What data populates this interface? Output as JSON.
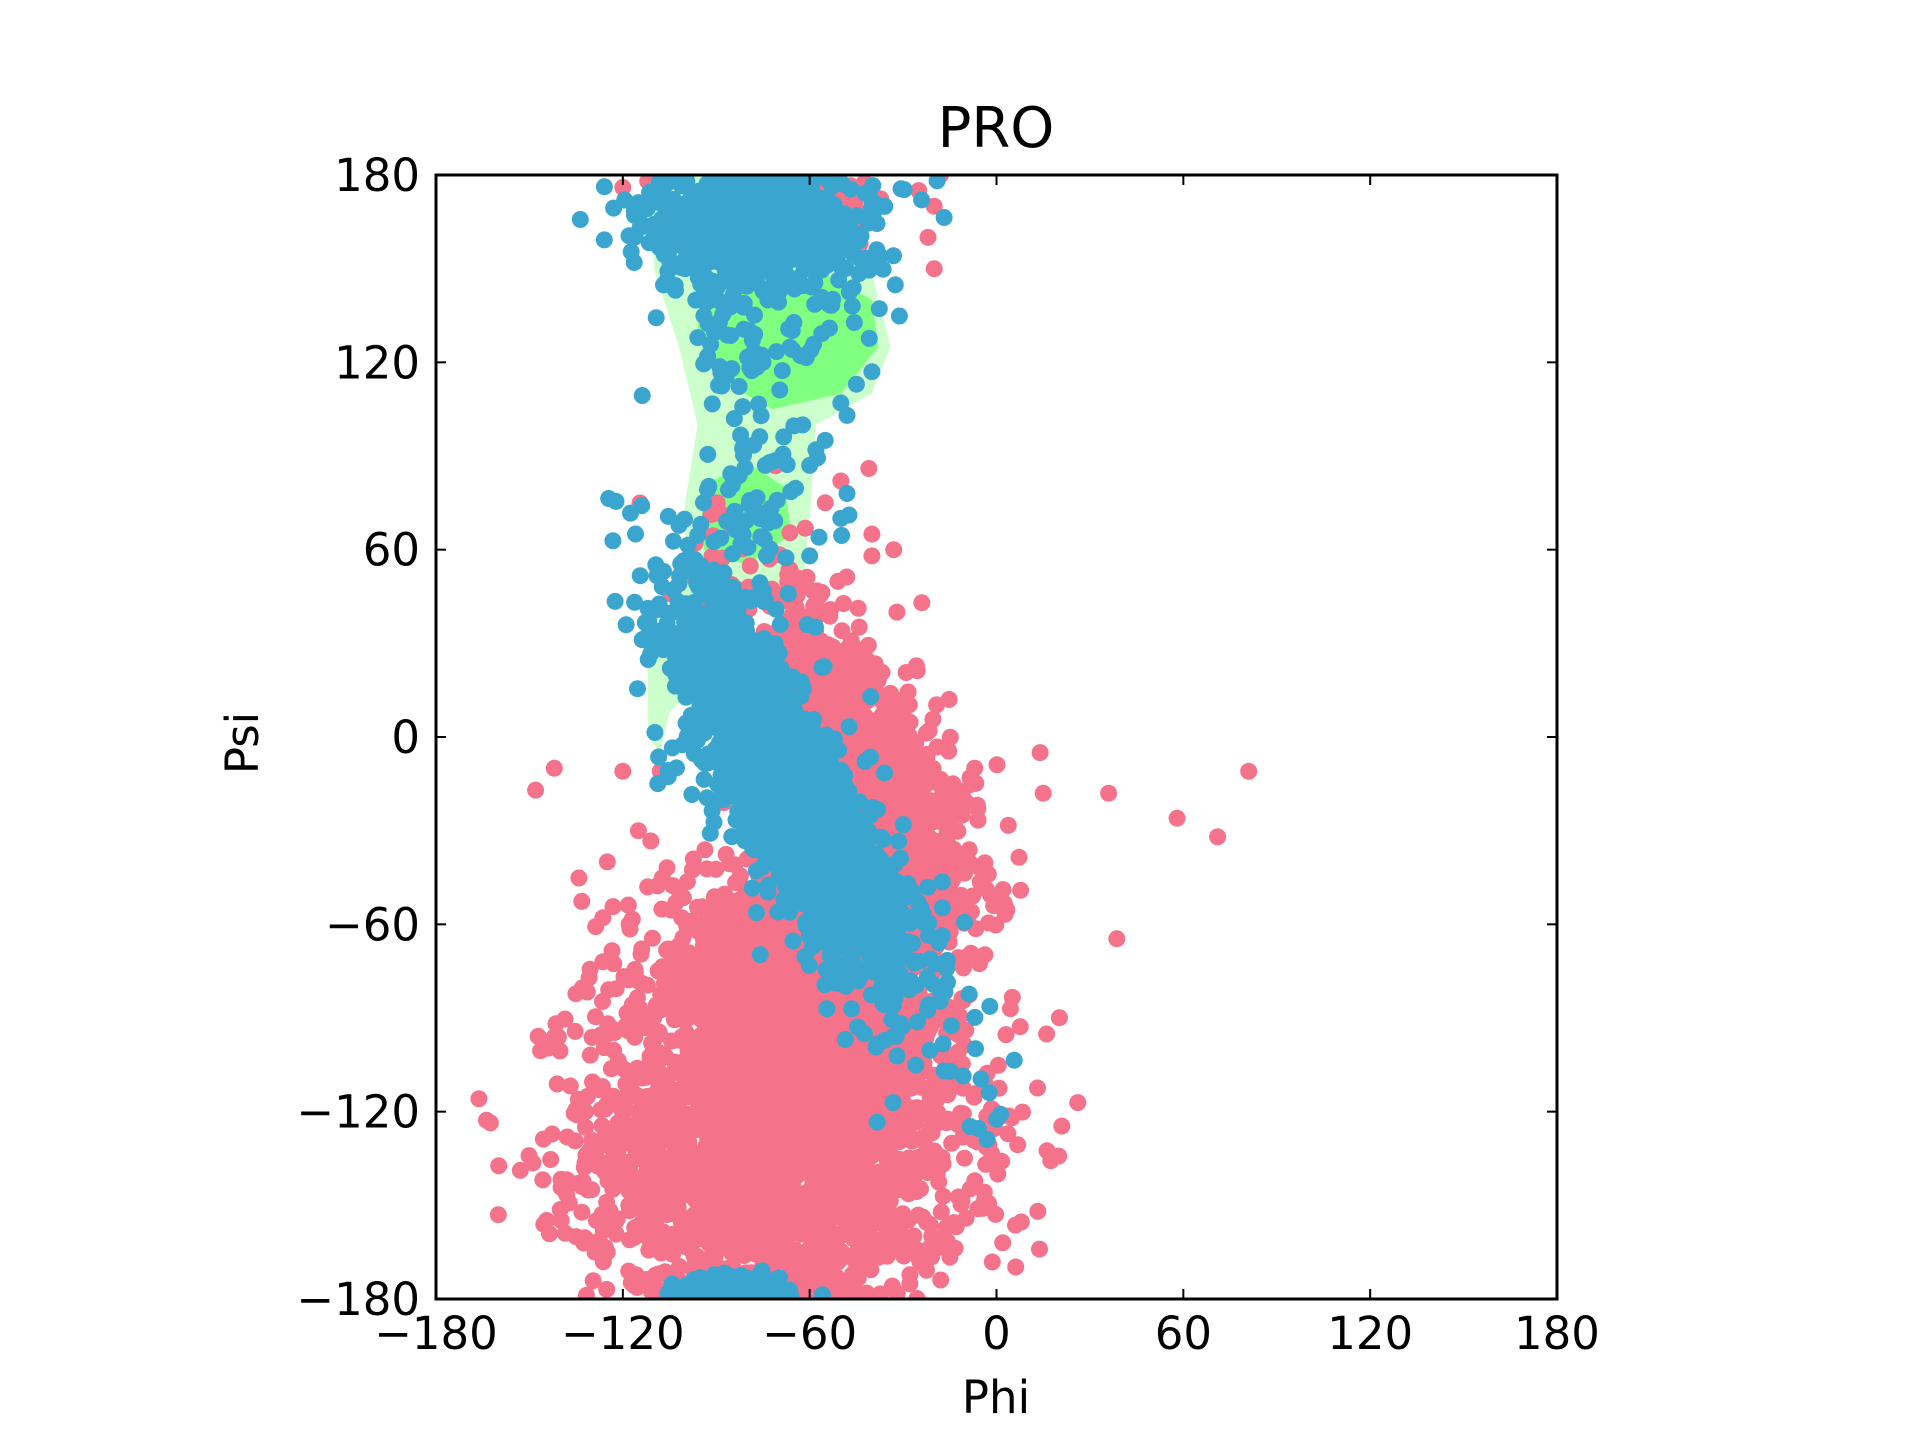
{
  "chart_data": {
    "type": "scatter",
    "title": "PRO",
    "xlabel": "Phi",
    "ylabel": "Psi",
    "xlim": [
      -180,
      180
    ],
    "ylim": [
      -180,
      180
    ],
    "xticks": [
      "−180",
      "−120",
      "−60",
      "0",
      "60",
      "120",
      "180"
    ],
    "yticks": [
      "−180",
      "−120",
      "−60",
      "0",
      "60",
      "120",
      "180"
    ],
    "xtick_values": [
      -180,
      -120,
      -60,
      0,
      60,
      120,
      180
    ],
    "ytick_values": [
      -180,
      -120,
      -60,
      0,
      60,
      120,
      180
    ],
    "grid": false,
    "legend": "none",
    "background_regions": [
      {
        "level": "allowed",
        "color": "#ccffcc",
        "polygon": [
          [
            -110,
            180
          ],
          [
            -47,
            180
          ],
          [
            -38,
            140
          ],
          [
            -34,
            125
          ],
          [
            -40,
            110
          ],
          [
            -58,
            100
          ],
          [
            -60,
            70
          ],
          [
            -62,
            50
          ],
          [
            -80,
            40
          ],
          [
            -92,
            20
          ],
          [
            -105,
            8
          ],
          [
            -108,
            -5
          ],
          [
            -112,
            0
          ],
          [
            -112,
            25
          ],
          [
            -102,
            45
          ],
          [
            -100,
            60
          ],
          [
            -100,
            75
          ],
          [
            -96,
            100
          ],
          [
            -102,
            125
          ],
          [
            -110,
            150
          ]
        ]
      },
      {
        "level": "favored",
        "color": "#80ff80",
        "polygon": [
          [
            -95,
            140
          ],
          [
            -58,
            150
          ],
          [
            -40,
            140
          ],
          [
            -38,
            125
          ],
          [
            -50,
            110
          ],
          [
            -72,
            105
          ],
          [
            -90,
            115
          ],
          [
            -96,
            130
          ]
        ]
      },
      {
        "level": "favored",
        "color": "#80ff80",
        "polygon": [
          [
            -95,
            80
          ],
          [
            -80,
            88
          ],
          [
            -68,
            80
          ],
          [
            -66,
            65
          ],
          [
            -80,
            55
          ],
          [
            -94,
            60
          ]
        ]
      }
    ],
    "series": [
      {
        "color": "#f4728a",
        "clusters": [
          {
            "cx": -70,
            "cy": -130,
            "sx": 30,
            "sy": 30,
            "angle": 0,
            "n": 2600
          },
          {
            "cx": -68,
            "cy": -75,
            "sx": 22,
            "sy": 18,
            "angle": 0,
            "n": 900
          },
          {
            "cx": -45,
            "cy": -10,
            "sx": 30,
            "sy": 12,
            "angle": -60,
            "n": 1500
          },
          {
            "cx": -62,
            "cy": 170,
            "sx": 10,
            "sy": 8,
            "angle": 0,
            "n": 150
          }
        ],
        "points": [
          [
            -160,
            -153
          ],
          [
            -148,
            -17
          ],
          [
            -142,
            -10
          ],
          [
            -120,
            -11
          ],
          [
            -108,
            -11
          ],
          [
            -125,
            -40
          ],
          [
            -112,
            -48
          ],
          [
            -115,
            -30
          ],
          [
            -118,
            -60
          ],
          [
            -135,
            -160
          ],
          [
            -132,
            -125
          ],
          [
            -130,
            -145
          ],
          [
            -125,
            -165
          ],
          [
            -14,
            -15
          ],
          [
            -11,
            -25
          ],
          [
            -6,
            -23
          ],
          [
            -7,
            -10
          ],
          [
            2,
            -162
          ],
          [
            14,
            -5
          ],
          [
            15,
            -18
          ],
          [
            36,
            -18
          ],
          [
            58,
            -26
          ],
          [
            71,
            -32
          ],
          [
            81,
            -11
          ],
          [
            -41,
            86
          ],
          [
            -50,
            82
          ],
          [
            -55,
            75
          ],
          [
            -40,
            65
          ],
          [
            -33,
            60
          ],
          [
            -40,
            58
          ],
          [
            -32,
            40
          ],
          [
            -24,
            43
          ],
          [
            -20,
            150
          ],
          [
            -22,
            160
          ],
          [
            -20,
            170
          ],
          [
            -25,
            175
          ],
          [
            -120,
            176
          ],
          [
            -110,
            177
          ],
          [
            -112,
            178
          ],
          [
            -18,
            180
          ],
          [
            -22,
            -60
          ],
          [
            -20,
            -75
          ],
          [
            -25,
            -90
          ],
          [
            -23,
            -100
          ]
        ]
      },
      {
        "color": "#3aa6cf",
        "clusters": [
          {
            "cx": -65,
            "cy": -20,
            "sx": 38,
            "sy": 10,
            "angle": -60,
            "n": 1600
          },
          {
            "cx": -75,
            "cy": 165,
            "sx": 18,
            "sy": 12,
            "angle": 0,
            "n": 700
          },
          {
            "cx": -85,
            "cy": -178,
            "sx": 11,
            "sy": 3,
            "angle": 0,
            "n": 140
          },
          {
            "cx": -75,
            "cy": 125,
            "sx": 12,
            "sy": 10,
            "angle": 0,
            "n": 55
          },
          {
            "cx": -78,
            "cy": 70,
            "sx": 10,
            "sy": 15,
            "angle": 0,
            "n": 60
          },
          {
            "cx": -90,
            "cy": 30,
            "sx": 8,
            "sy": 12,
            "angle": 0,
            "n": 30
          }
        ],
        "points": [
          [
            -48,
            103
          ],
          [
            -50,
            107
          ],
          [
            -55,
            95
          ],
          [
            -58,
            92
          ],
          [
            -60,
            87
          ],
          [
            -48,
            78
          ],
          [
            -50,
            70
          ],
          [
            -57,
            64
          ],
          [
            -60,
            58
          ],
          [
            -112,
            170
          ],
          [
            -106,
            155
          ],
          [
            -100,
            150
          ],
          [
            -95,
            145
          ],
          [
            -92,
            140
          ],
          [
            -40,
            117
          ],
          [
            -45,
            113
          ],
          [
            -75,
            120
          ],
          [
            -85,
            118
          ],
          [
            -107,
            28
          ],
          [
            -103,
            20
          ],
          [
            -100,
            15
          ]
        ]
      }
    ]
  }
}
